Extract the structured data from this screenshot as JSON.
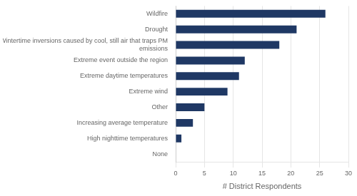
{
  "chart_data": {
    "type": "bar",
    "orientation": "horizontal",
    "categories": [
      "None",
      "High nighttime temperatures",
      "Increasing average temperature",
      "Other",
      "Extreme wind",
      "Extreme daytime temperatures",
      "Extreme event outside the region",
      "Wintertime inversions caused by cool, still air that traps PM\nemissions",
      "Drought",
      "Wildfire"
    ],
    "values": [
      0,
      1,
      3,
      5,
      9,
      11,
      12,
      18,
      21,
      26
    ],
    "color": "#1F3864",
    "xlabel": "# District Respondents",
    "xlim": [
      0,
      30
    ],
    "xticks": [
      0,
      5,
      10,
      15,
      20,
      25,
      30
    ],
    "grid": true
  }
}
